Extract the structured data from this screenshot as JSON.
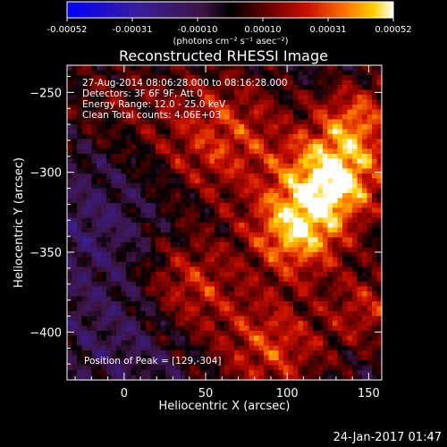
{
  "chart_data": {
    "type": "heatmap",
    "title": "Reconstructed RHESSI Image",
    "xlabel": "Heliocentric X (arcsec)",
    "ylabel": "Heliocentric Y (arcsec)",
    "xlim": [
      -35,
      158
    ],
    "ylim": [
      -430,
      -233
    ],
    "xticks": [
      0,
      50,
      100,
      150
    ],
    "yticks": [
      -250,
      -300,
      -350,
      -400
    ],
    "colorbar": {
      "unit_label": "(photons cm⁻² s⁻¹ asec⁻²)",
      "ticks": [
        "-0.00052",
        "-0.00031",
        "-0.00010",
        "0.00010",
        "0.00031",
        "0.00052"
      ],
      "range": [
        -0.00052,
        0.00052
      ]
    },
    "annotations": [
      "27-Aug-2014 08:06:28.000 to 08:16:28.000",
      "Detectors: 3F 6F 9F, Att 0",
      "Energy Range: 12.0 - 25.0 keV",
      "Clean     Total counts: 4.06E+03"
    ],
    "peak_label": "Position of Peak = [129,-304]",
    "peak": [
      129,
      -304
    ],
    "sources": [
      {
        "x": 129,
        "y": -304,
        "amp": 0.00052,
        "sigma": 22
      },
      {
        "x": 105,
        "y": -338,
        "amp": 0.00042,
        "sigma": 20
      },
      {
        "x": 60,
        "y": -278,
        "amp": 0.0003,
        "sigma": 30
      },
      {
        "x": 145,
        "y": -265,
        "amp": 0.00028,
        "sigma": 18
      },
      {
        "x": 40,
        "y": -370,
        "amp": 0.00026,
        "sigma": 22
      },
      {
        "x": 90,
        "y": -410,
        "amp": 0.0003,
        "sigma": 25
      },
      {
        "x": 150,
        "y": -385,
        "amp": 0.00024,
        "sigma": 18
      },
      {
        "x": -10,
        "y": -255,
        "amp": 0.00012,
        "sigma": 25
      },
      {
        "x": -20,
        "y": -330,
        "amp": -0.0001,
        "sigma": 28
      },
      {
        "x": 0,
        "y": -400,
        "amp": -8e-05,
        "sigma": 25
      }
    ]
  },
  "footer": {
    "date": "24-Jan-2017 01:47"
  }
}
